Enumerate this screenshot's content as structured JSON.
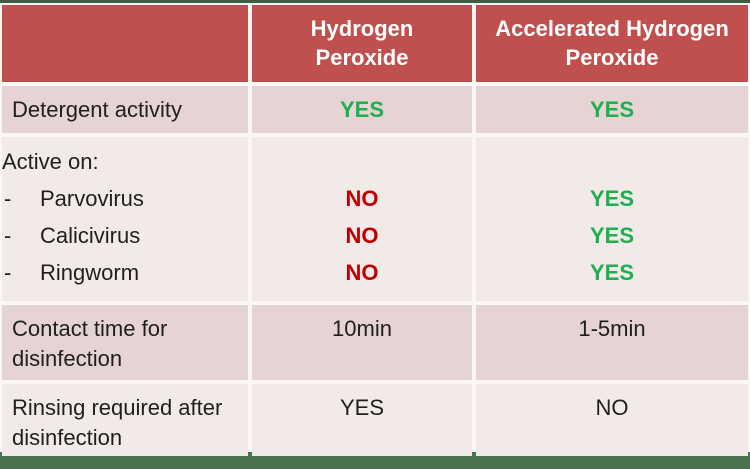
{
  "colors": {
    "header_bg": "#C0504D",
    "header_text": "#FFFFFF",
    "row_dark": "#E5D4D3",
    "row_light": "#F2EAE9",
    "divider": "#FAF7F6",
    "yes_green": "#1FAF4F",
    "no_red": "#C00000",
    "bottom_bar_green": "#4A7350",
    "top_line_green": "#3E5C42",
    "body_text": "#1F1F1F"
  },
  "table": {
    "headers": [
      "",
      "Hydrogen Peroxide",
      "Accelerated Hydrogen Peroxide"
    ],
    "bullet": "-",
    "rows": {
      "detergent": {
        "label": "Detergent activity",
        "hp": "YES",
        "ahp": "YES"
      },
      "active_on": {
        "label": "Active on:",
        "items": [
          "Parvovirus",
          "Calicivirus",
          "Ringworm"
        ],
        "hp": [
          "NO",
          "NO",
          "NO"
        ],
        "ahp": [
          "YES",
          "YES",
          "YES"
        ]
      },
      "contact": {
        "label": "Contact time for disinfection",
        "hp": "10min",
        "ahp": "1-5min"
      },
      "rinsing": {
        "label": "Rinsing required after disinfection",
        "hp": "YES",
        "ahp": "NO"
      }
    }
  }
}
